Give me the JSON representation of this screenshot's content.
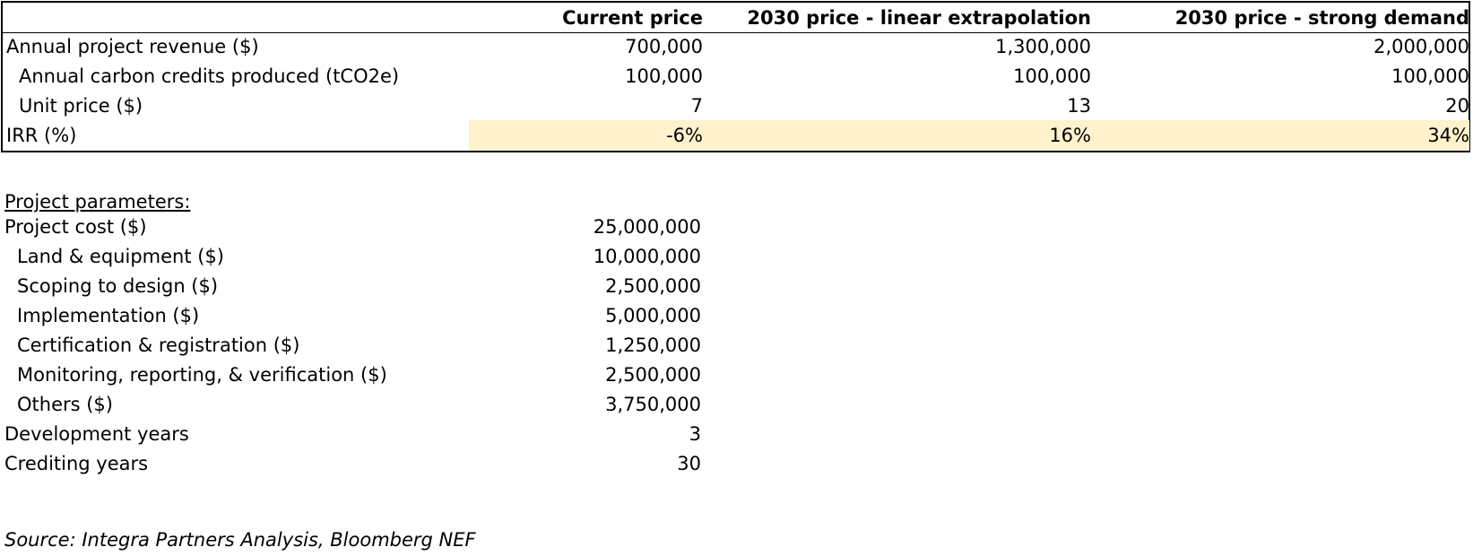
{
  "table": {
    "headers": [
      "",
      "Current price",
      "2030 price - linear extrapolation",
      "2030 price - strong demand"
    ],
    "rows": [
      {
        "label": "Annual project revenue ($)",
        "values": [
          "700,000",
          "1,300,000",
          "2,000,000"
        ]
      },
      {
        "label": "Annual carbon credits produced (tCO2e)",
        "values": [
          "100,000",
          "100,000",
          "100,000"
        ]
      },
      {
        "label": "Unit price ($)",
        "values": [
          "7",
          "13",
          "20"
        ]
      },
      {
        "label": "IRR (%)",
        "values": [
          "-6%",
          "16%",
          "34%"
        ]
      }
    ],
    "highlight_color": "#fff2cc"
  },
  "params": {
    "title": "Project parameters:",
    "rows": [
      {
        "label": "Project cost ($)",
        "value": "25,000,000"
      },
      {
        "label": "Land & equipment ($)",
        "value": "10,000,000"
      },
      {
        "label": "Scoping to design ($)",
        "value": "2,500,000"
      },
      {
        "label": "Implementation ($)",
        "value": "5,000,000"
      },
      {
        "label": "Certification & registration ($)",
        "value": "1,250,000"
      },
      {
        "label": "Monitoring, reporting, & verification ($)",
        "value": "2,500,000"
      },
      {
        "label": "Others ($)",
        "value": "3,750,000"
      },
      {
        "label": "Development years",
        "value": "3"
      },
      {
        "label": "Crediting years",
        "value": "30"
      }
    ]
  },
  "source": "Source: Integra Partners Analysis, Bloomberg NEF"
}
